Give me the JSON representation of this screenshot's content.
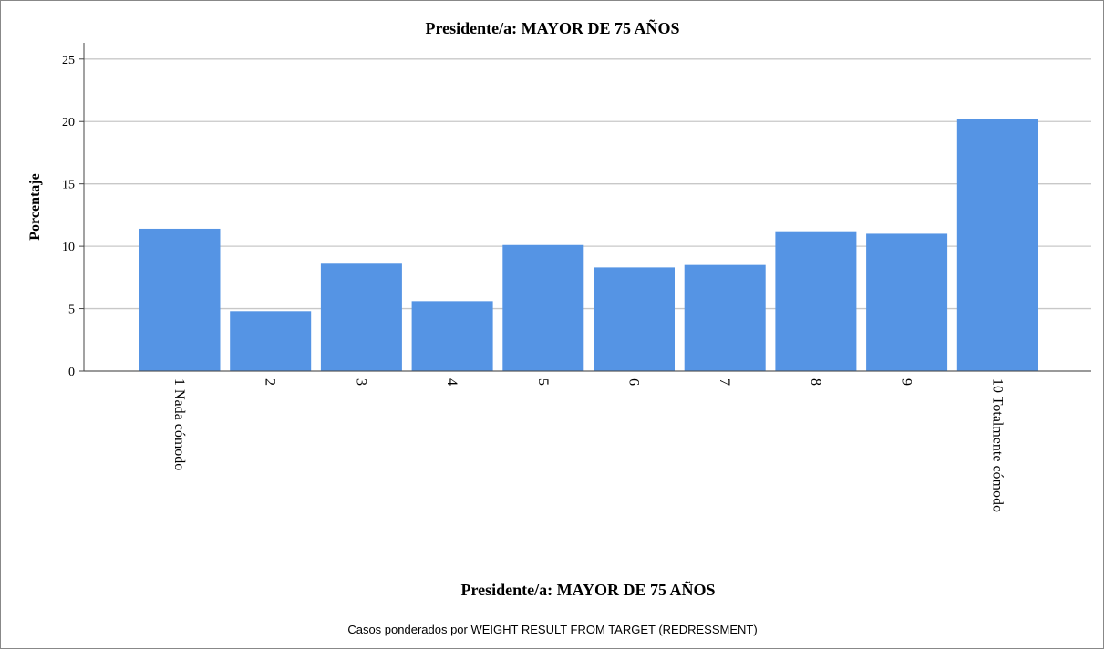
{
  "chart_data": {
    "type": "bar",
    "title": "Presidente/a: MAYOR DE 75 AÑOS",
    "x_label": "Presidente/a: MAYOR DE 75 AÑOS",
    "y_label": "Porcentaje",
    "footnote": "Casos ponderados por WEIGHT RESULT FROM TARGET (REDRESSMENT)",
    "categories": [
      "1 Nada cómodo",
      "2",
      "3",
      "4",
      "5",
      "6",
      "7",
      "8",
      "9",
      "10 Totalmente cómodo"
    ],
    "values": [
      11.4,
      4.8,
      8.6,
      5.6,
      10.1,
      8.3,
      8.5,
      11.2,
      11.0,
      20.2
    ],
    "color": "#5594e4",
    "ylim": [
      0,
      26.3
    ],
    "yticks": [
      0,
      5,
      10,
      15,
      20,
      25
    ],
    "grid": true
  }
}
